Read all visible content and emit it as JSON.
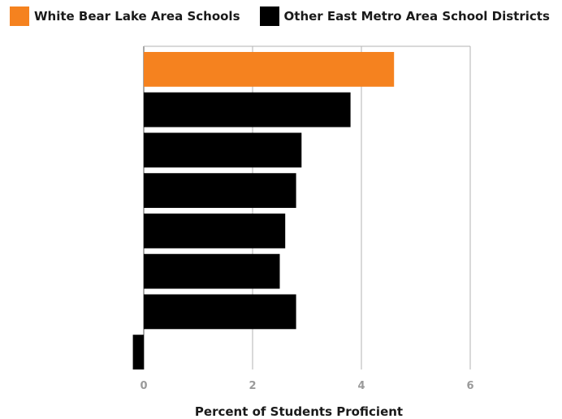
{
  "chart_data": {
    "type": "bar",
    "orientation": "horizontal",
    "xlabel": "Percent of Students Proficient",
    "xlim": [
      0,
      6
    ],
    "xticks": [
      0,
      2,
      4,
      6
    ],
    "grid": true,
    "legend_position": "top-left",
    "series": [
      {
        "name": "White Bear Lake Area Schools",
        "color": "#F5821F",
        "values": [
          4.6
        ]
      },
      {
        "name": "Other East Metro Area School Districts",
        "color": "#000000",
        "values": [
          3.8,
          2.9,
          2.8,
          2.6,
          2.5,
          2.8,
          -0.2
        ]
      }
    ]
  }
}
